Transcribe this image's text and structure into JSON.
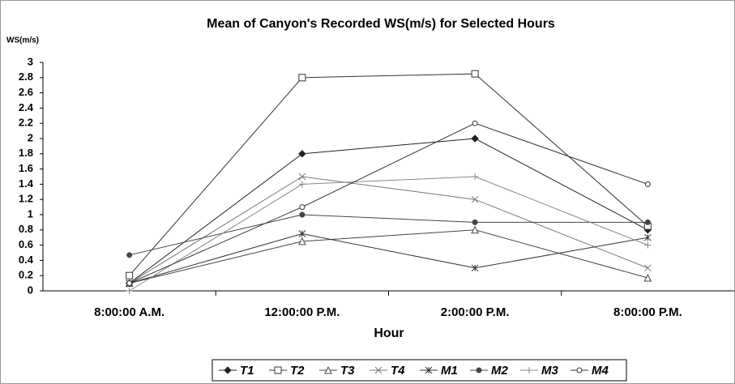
{
  "chart_data": {
    "type": "line",
    "title": "Mean of Canyon's Recorded WS(m/s) for Selected Hours",
    "y_label": "WS(m/s)",
    "x_label": "Hour",
    "categories": [
      "8:00:00 A.M.",
      "12:00:00 P.M.",
      "2:00:00 P.M.",
      "8:00:00 P.M."
    ],
    "series": [
      {
        "name": "T1",
        "color": "#222222",
        "marker": "diamond",
        "values": [
          0.1,
          1.8,
          2.0,
          0.8
        ]
      },
      {
        "name": "T2",
        "color": "#333333",
        "marker": "square",
        "values": [
          0.2,
          2.8,
          2.85,
          0.85
        ]
      },
      {
        "name": "T3",
        "color": "#444444",
        "marker": "triangle",
        "values": [
          0.1,
          0.65,
          0.8,
          0.17
        ]
      },
      {
        "name": "T4",
        "color": "#777777",
        "marker": "x",
        "values": [
          0.1,
          1.5,
          1.2,
          0.3
        ]
      },
      {
        "name": "M1",
        "color": "#333333",
        "marker": "asterisk",
        "values": [
          0.1,
          0.75,
          0.3,
          0.7
        ]
      },
      {
        "name": "M2",
        "color": "#444444",
        "marker": "circle-filled",
        "values": [
          0.47,
          1.0,
          0.9,
          0.9
        ]
      },
      {
        "name": "M3",
        "color": "#888888",
        "marker": "plus",
        "values": [
          0,
          1.4,
          1.5,
          0.6
        ]
      },
      {
        "name": "M4",
        "color": "#333333",
        "marker": "circle",
        "values": [
          0.1,
          1.1,
          2.2,
          1.4
        ]
      }
    ],
    "ylim": [
      0,
      3
    ],
    "yticks": [
      0,
      0.2,
      0.4,
      0.6,
      0.8,
      1,
      1.2,
      1.4,
      1.6,
      1.8,
      2,
      2.2,
      2.4,
      2.6,
      2.8,
      3
    ],
    "grid": false,
    "legend": "bottom"
  }
}
